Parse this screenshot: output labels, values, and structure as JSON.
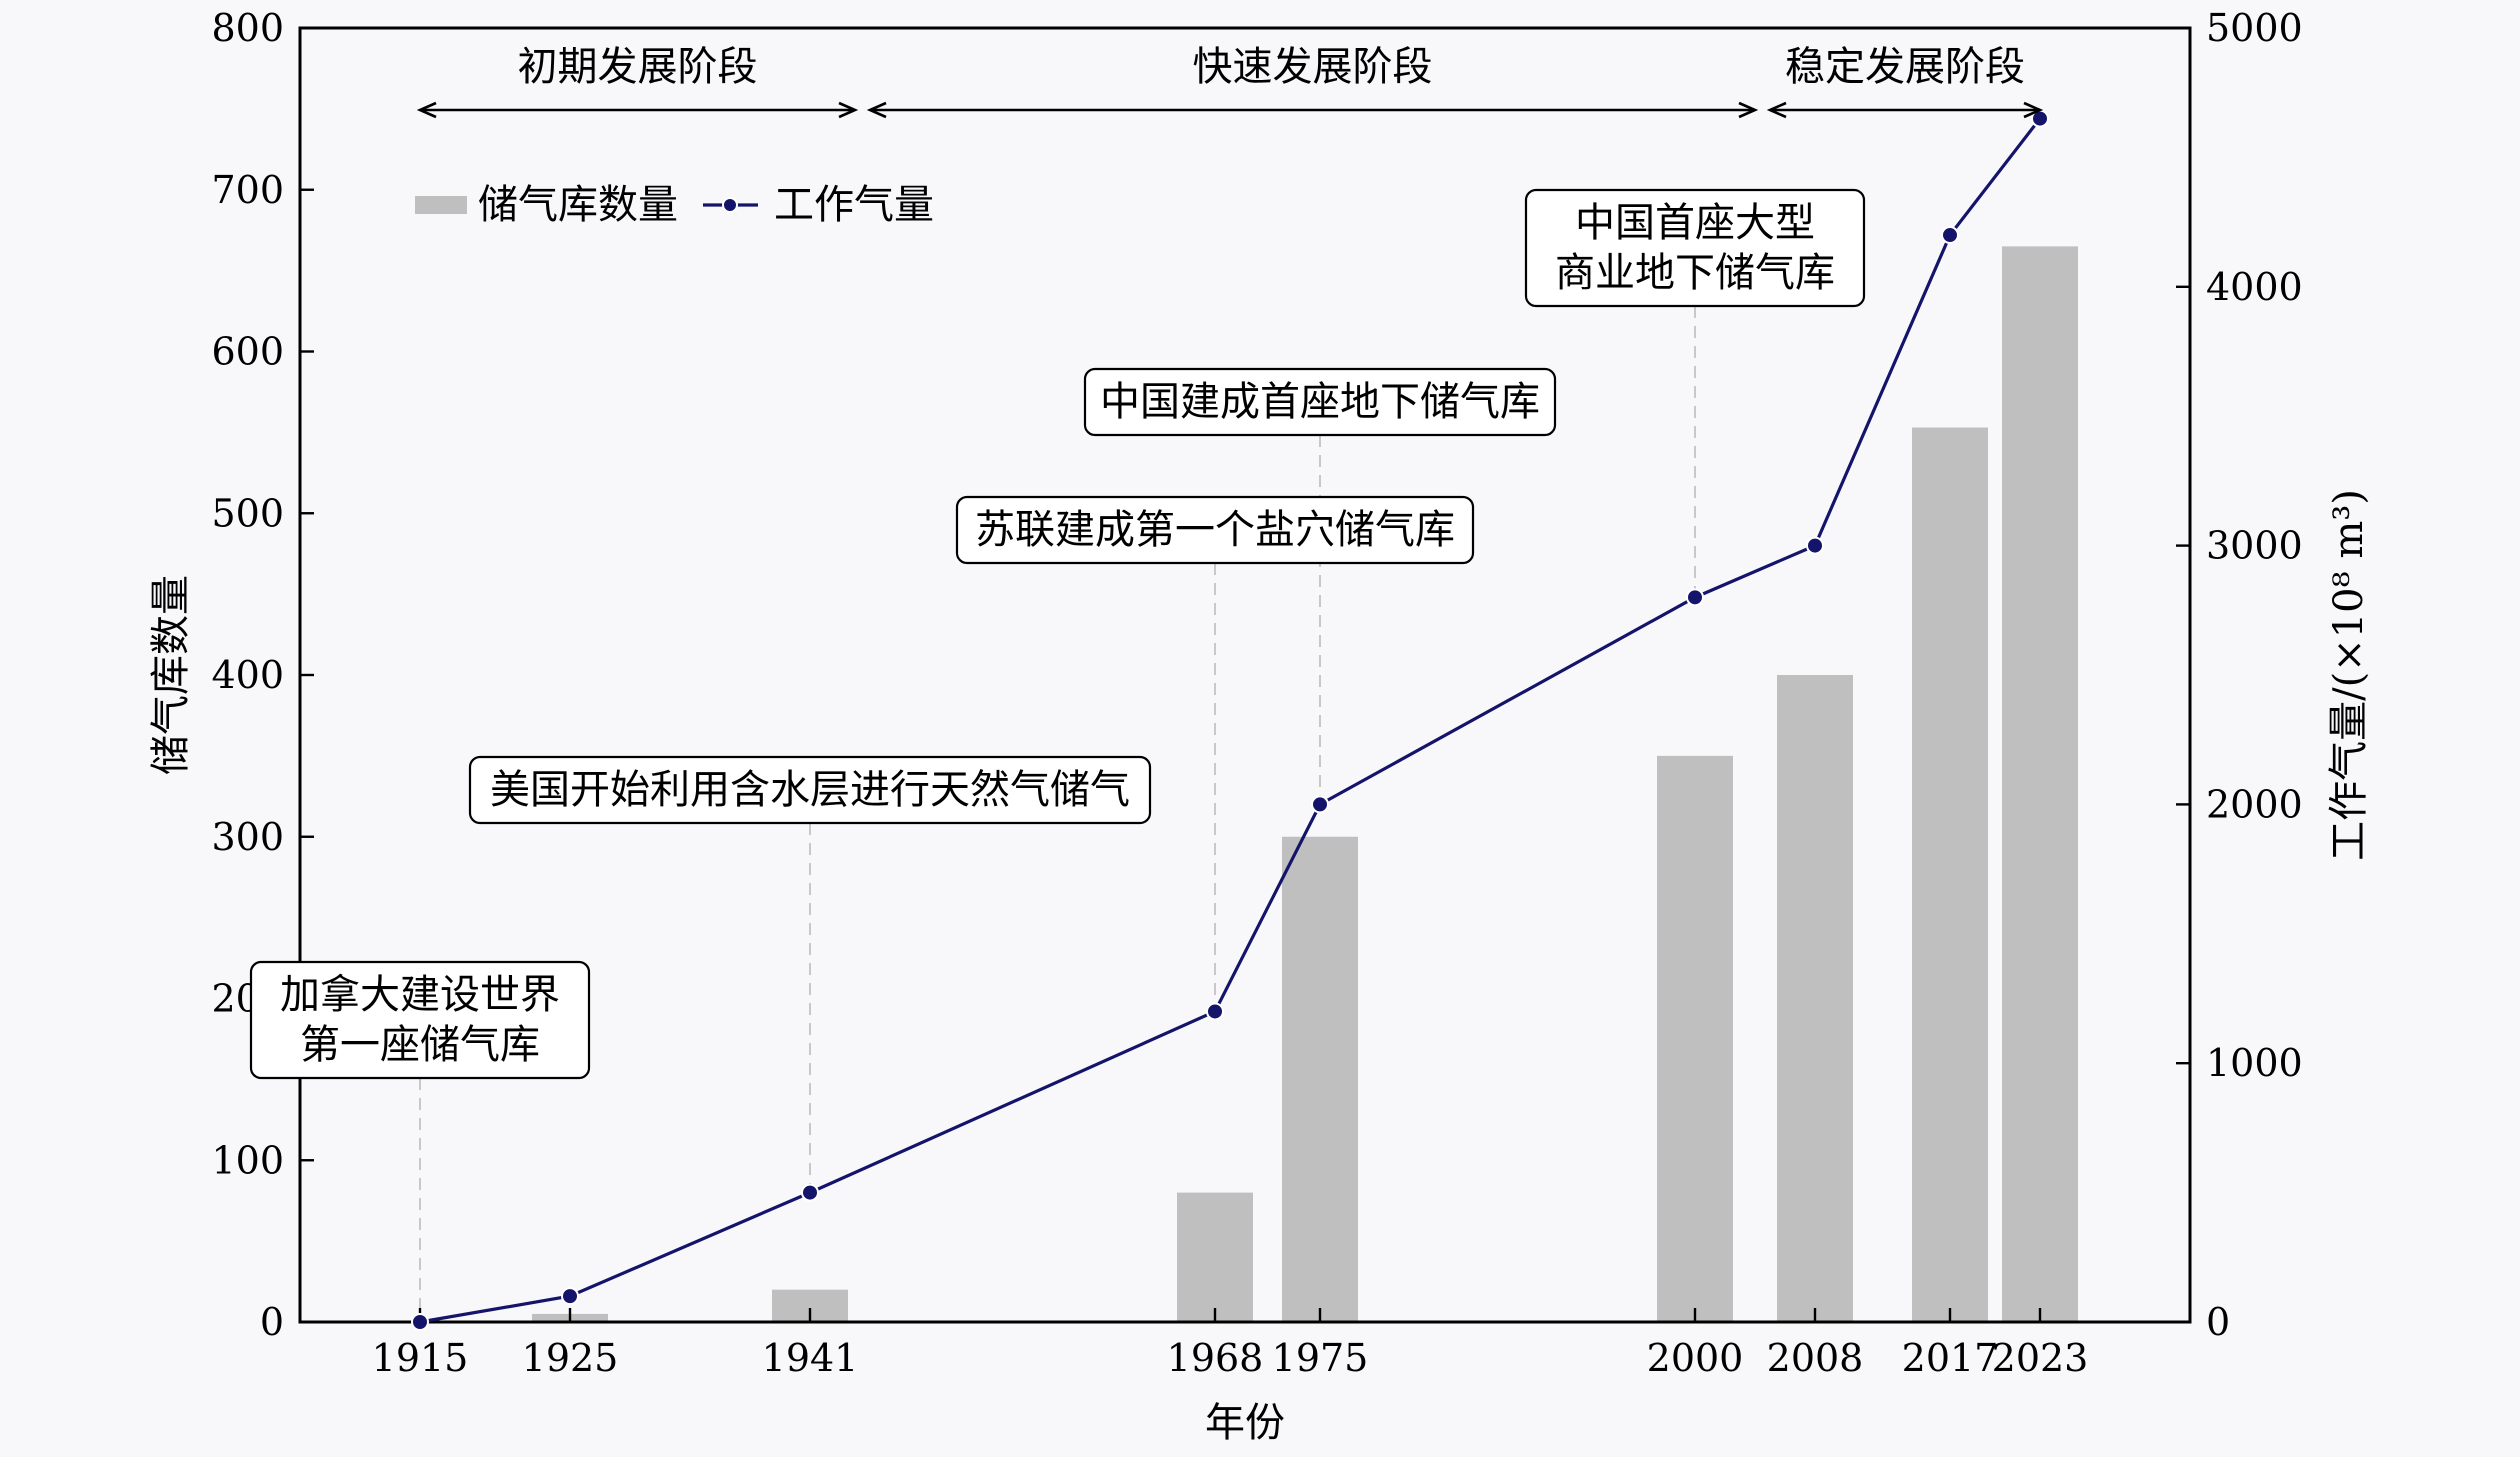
{
  "chart_data": {
    "type": "bar+line",
    "xlabel": "年份",
    "ylabel_left": "储气库数量",
    "ylabel_right": "工作气量/(×10⁸ m³)",
    "ylim_left": [
      0,
      800
    ],
    "ylim_right": [
      0,
      5000
    ],
    "yticks_left": [
      0,
      100,
      200,
      300,
      400,
      500,
      600,
      700,
      800
    ],
    "yticks_right": [
      0,
      1000,
      2000,
      3000,
      4000,
      5000
    ],
    "xlim": [
      1907,
      2033
    ],
    "categories": [
      "1915",
      "1925",
      "1941",
      "1968",
      "1975",
      "2000",
      "2008",
      "2017",
      "2023"
    ],
    "series": [
      {
        "name": "储气库数量",
        "type": "bar",
        "axis": "left",
        "color": "#bfbfbf",
        "values": [
          0,
          5,
          20,
          80,
          300,
          350,
          400,
          553,
          665
        ]
      },
      {
        "name": "工作气量",
        "type": "line",
        "axis": "right",
        "color": "#14146b",
        "values": [
          0,
          100,
          500,
          1200,
          2000,
          2800,
          3000,
          4200,
          4650
        ]
      }
    ],
    "legend": {
      "position": "upper-left"
    },
    "phases": [
      {
        "label": "初期发展阶段",
        "from": 1915,
        "to": 1944
      },
      {
        "label": "快速发展阶段",
        "from": 1945,
        "to": 2004
      },
      {
        "label": "稳定发展阶段",
        "from": 2005,
        "to": 2023
      }
    ],
    "annotations": [
      {
        "lines": [
          "加拿大建设世界",
          "第一座储气库"
        ],
        "year": 1915
      },
      {
        "lines": [
          "美国开始利用含水层进行天然气储气"
        ],
        "year": 1941
      },
      {
        "lines": [
          "苏联建成第一个盐穴储气库"
        ],
        "year": 1968
      },
      {
        "lines": [
          "中国建成首座地下储气库"
        ],
        "year": 1975
      },
      {
        "lines": [
          "中国首座大型",
          "商业地下储气库"
        ],
        "year": 2000
      }
    ],
    "grid": false
  }
}
